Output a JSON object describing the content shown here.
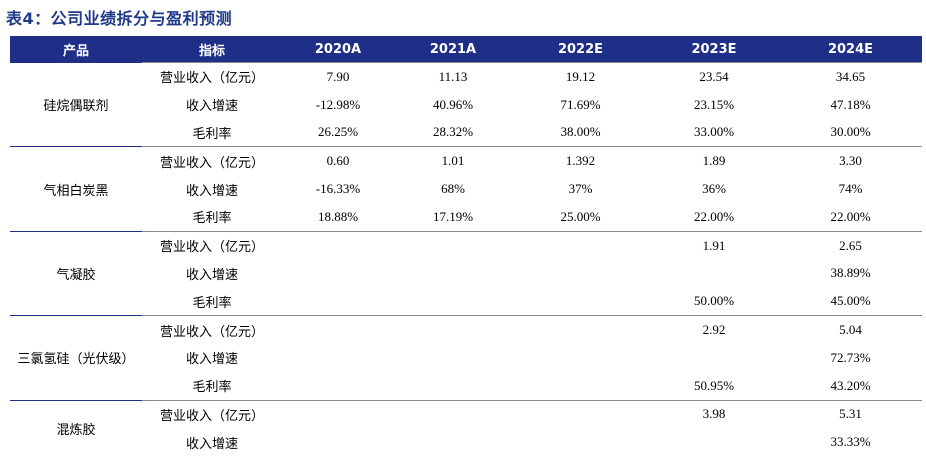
{
  "title": "表4：公司业绩拆分与盈利预测",
  "header": [
    "产品",
    "指标",
    "2020A",
    "2021A",
    "2022E",
    "2023E",
    "2024E"
  ],
  "groups": [
    {
      "product": "硅烷偶联剂",
      "rows": [
        {
          "metric": "营业收入（亿元）",
          "values": [
            "7.90",
            "11.13",
            "19.12",
            "23.54",
            "34.65"
          ]
        },
        {
          "metric": "收入增速",
          "values": [
            "-12.98%",
            "40.96%",
            "71.69%",
            "23.15%",
            "47.18%"
          ]
        },
        {
          "metric": "毛利率",
          "values": [
            "26.25%",
            "28.32%",
            "38.00%",
            "33.00%",
            "30.00%"
          ]
        }
      ]
    },
    {
      "product": "气相白炭黑",
      "rows": [
        {
          "metric": "营业收入（亿元）",
          "values": [
            "0.60",
            "1.01",
            "1.392",
            "1.89",
            "3.30"
          ]
        },
        {
          "metric": "收入增速",
          "values": [
            "-16.33%",
            "68%",
            "37%",
            "36%",
            "74%"
          ]
        },
        {
          "metric": "毛利率",
          "values": [
            "18.88%",
            "17.19%",
            "25.00%",
            "22.00%",
            "22.00%"
          ]
        }
      ]
    },
    {
      "product": "气凝胶",
      "rows": [
        {
          "metric": "营业收入（亿元）",
          "values": [
            "",
            "",
            "",
            "1.91",
            "2.65"
          ]
        },
        {
          "metric": "收入增速",
          "values": [
            "",
            "",
            "",
            "",
            "38.89%"
          ]
        },
        {
          "metric": "毛利率",
          "values": [
            "",
            "",
            "",
            "50.00%",
            "45.00%"
          ]
        }
      ]
    },
    {
      "product": "三氯氢硅（光伏级）",
      "rows": [
        {
          "metric": "营业收入（亿元）",
          "values": [
            "",
            "",
            "",
            "2.92",
            "5.04"
          ]
        },
        {
          "metric": "收入增速",
          "values": [
            "",
            "",
            "",
            "",
            "72.73%"
          ]
        },
        {
          "metric": "毛利率",
          "values": [
            "",
            "",
            "",
            "50.95%",
            "43.20%"
          ]
        }
      ]
    },
    {
      "product": "混炼胶",
      "rows": [
        {
          "metric": "营业收入（亿元）",
          "values": [
            "",
            "",
            "",
            "3.98",
            "5.31"
          ]
        },
        {
          "metric": "收入增速",
          "values": [
            "",
            "",
            "",
            "",
            "33.33%"
          ]
        }
      ]
    }
  ],
  "colors": {
    "header_bg": "#1f2f87",
    "title": "#1f3a8a",
    "group_rule": "#1f2f87"
  }
}
